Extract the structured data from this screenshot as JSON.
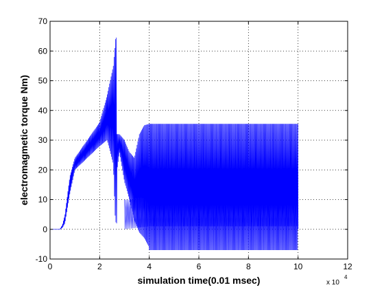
{
  "chart_data": {
    "type": "line",
    "title": "",
    "xlabel": "simulation time(0.01 msec)",
    "ylabel": "electromagmetic torque Nm)",
    "x_multiplier": "x 10",
    "x_multiplier_exponent": "4",
    "xlim": [
      0,
      12
    ],
    "ylim": [
      -10,
      70
    ],
    "xticks": [
      0,
      2,
      4,
      6,
      8,
      10,
      12
    ],
    "yticks": [
      -10,
      0,
      10,
      20,
      30,
      40,
      50,
      60,
      70
    ],
    "xtick_labels": [
      "0",
      "2",
      "4",
      "6",
      "8",
      "10",
      "12"
    ],
    "ytick_labels": [
      "-10",
      "0",
      "10",
      "20",
      "30",
      "40",
      "50",
      "60",
      "70"
    ],
    "grid": true,
    "legend": "none",
    "series": [
      {
        "color": "#0000ff",
        "startup_envelope": {
          "x": [
            0.0,
            0.4,
            0.5,
            0.6,
            0.8,
            1.0,
            1.5,
            2.0,
            2.3,
            2.55,
            2.62,
            2.66,
            2.7
          ],
          "low": [
            0.0,
            0.0,
            0.5,
            2.0,
            12.0,
            20.0,
            24.0,
            28.0,
            30.0,
            22.0,
            5.0,
            2.0,
            2.0
          ],
          "high": [
            0.0,
            0.0,
            1.5,
            5.0,
            18.0,
            24.0,
            30.0,
            36.0,
            45.0,
            55.0,
            62.0,
            66.0,
            60.0
          ]
        },
        "transition_envelope": {
          "x": [
            2.7,
            2.8,
            3.0,
            3.2,
            3.4,
            3.6,
            3.8,
            4.0
          ],
          "low": [
            20.0,
            26.0,
            16.0,
            10.0,
            3.0,
            -1.0,
            -3.0,
            -6.0
          ],
          "high": [
            32.0,
            32.0,
            30.0,
            26.0,
            24.0,
            32.0,
            35.0,
            35.5
          ]
        },
        "steady_envelope": {
          "x": [
            4.0,
            10.0
          ],
          "low": [
            -7.0,
            -7.0
          ],
          "high": [
            35.5,
            35.5
          ]
        },
        "band": {
          "x": [
            3.0,
            4.0,
            10.0
          ],
          "low": [
            0.0,
            1.0,
            1.0
          ],
          "high": [
            10.0,
            10.0,
            10.0
          ]
        },
        "x_end": 10.0
      }
    ]
  }
}
